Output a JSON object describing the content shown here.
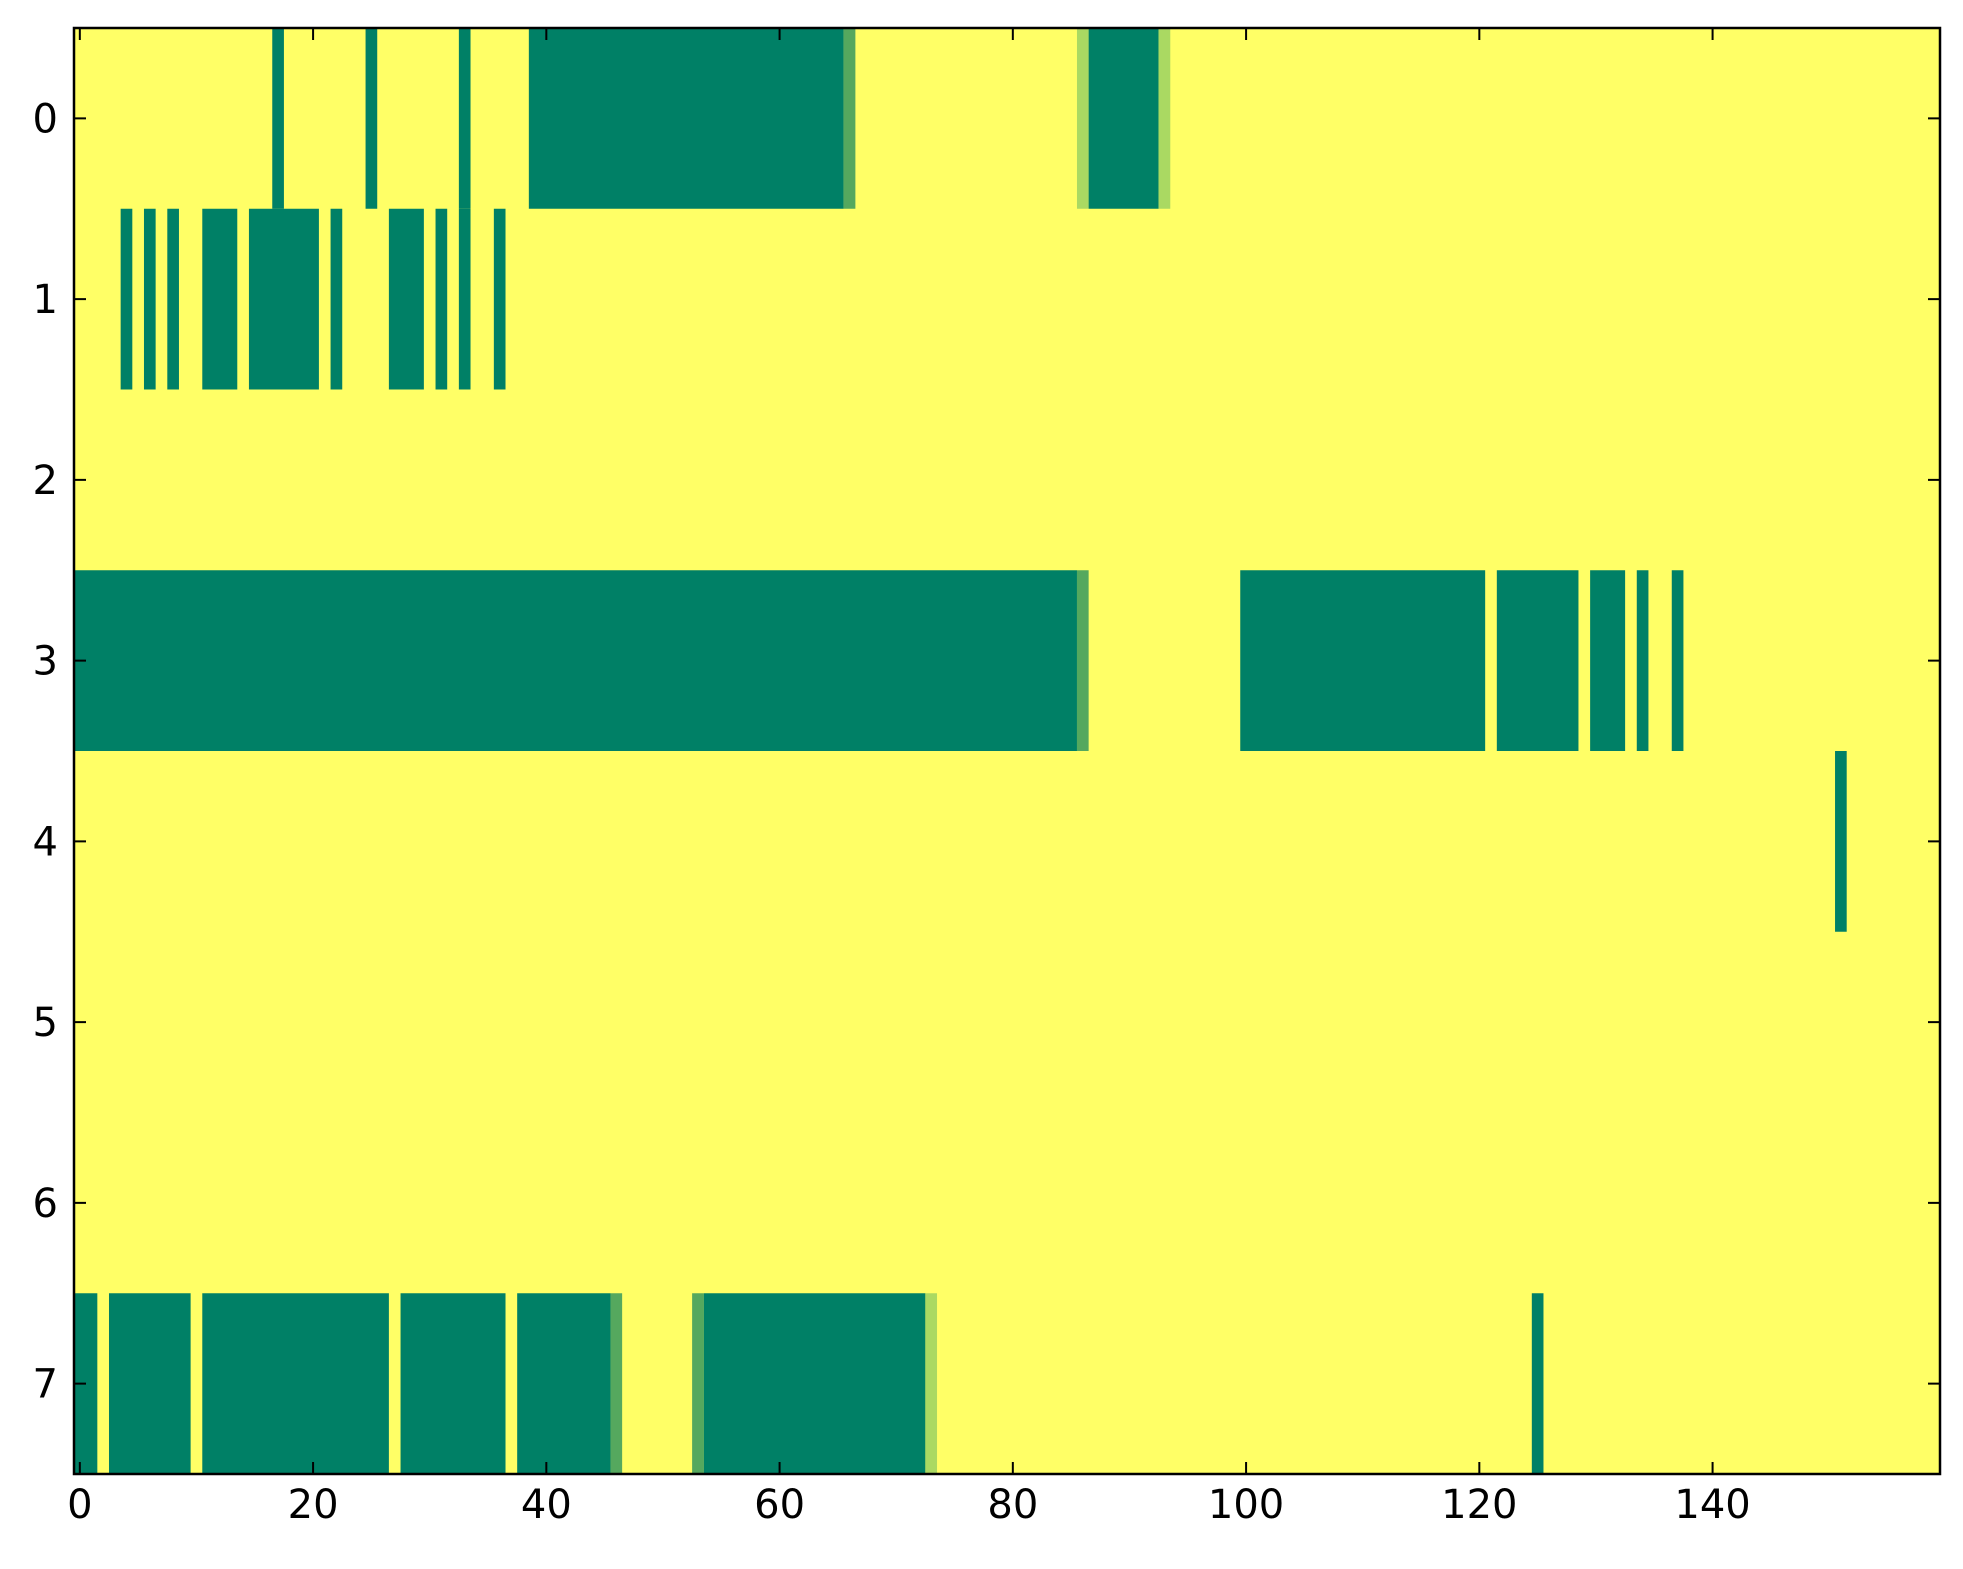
{
  "chart_data": {
    "type": "heatmap",
    "title": "",
    "xlabel": "",
    "ylabel": "",
    "xlim": [
      -0.5,
      159.5
    ],
    "ylim": [
      7.5,
      -0.5
    ],
    "x_ticks": [
      0,
      20,
      40,
      60,
      80,
      100,
      120,
      140
    ],
    "y_ticks": [
      0,
      1,
      2,
      3,
      4,
      5,
      6,
      7
    ],
    "grid": false,
    "legend": "none",
    "colors": {
      "background": "#ffff66",
      "high": "#008066",
      "mid": "#55a85e",
      "low": "#aad962"
    },
    "rows": [
      {
        "row": 0,
        "segments": [
          {
            "start": 17,
            "end": 17,
            "level": "high"
          },
          {
            "start": 25,
            "end": 25,
            "level": "high"
          },
          {
            "start": 33,
            "end": 33,
            "level": "high"
          },
          {
            "start": 39,
            "end": 65,
            "level": "high"
          },
          {
            "start": 66,
            "end": 66,
            "level": "mid"
          },
          {
            "start": 86,
            "end": 86,
            "level": "low"
          },
          {
            "start": 87,
            "end": 92,
            "level": "high"
          },
          {
            "start": 93,
            "end": 93,
            "level": "low"
          }
        ]
      },
      {
        "row": 1,
        "segments": [
          {
            "start": 4,
            "end": 4,
            "level": "high"
          },
          {
            "start": 6,
            "end": 6,
            "level": "high"
          },
          {
            "start": 8,
            "end": 8,
            "level": "high"
          },
          {
            "start": 11,
            "end": 13,
            "level": "high"
          },
          {
            "start": 15,
            "end": 20,
            "level": "high"
          },
          {
            "start": 22,
            "end": 22,
            "level": "high"
          },
          {
            "start": 27,
            "end": 29,
            "level": "high"
          },
          {
            "start": 31,
            "end": 31,
            "level": "high"
          },
          {
            "start": 33,
            "end": 33,
            "level": "high"
          },
          {
            "start": 36,
            "end": 36,
            "level": "high"
          }
        ]
      },
      {
        "row": 2,
        "segments": []
      },
      {
        "row": 3,
        "segments": [
          {
            "start": 0,
            "end": 85,
            "level": "high"
          },
          {
            "start": 86,
            "end": 86,
            "level": "mid"
          },
          {
            "start": 100,
            "end": 120,
            "level": "high"
          },
          {
            "start": 122,
            "end": 128,
            "level": "high"
          },
          {
            "start": 130,
            "end": 132,
            "level": "high"
          },
          {
            "start": 134,
            "end": 134,
            "level": "high"
          },
          {
            "start": 137,
            "end": 137,
            "level": "high"
          }
        ]
      },
      {
        "row": 4,
        "segments": [
          {
            "start": 151,
            "end": 151,
            "level": "high"
          }
        ]
      },
      {
        "row": 5,
        "segments": []
      },
      {
        "row": 6,
        "segments": []
      },
      {
        "row": 7,
        "segments": [
          {
            "start": 0,
            "end": 1,
            "level": "high"
          },
          {
            "start": 3,
            "end": 9,
            "level": "high"
          },
          {
            "start": 11,
            "end": 26,
            "level": "high"
          },
          {
            "start": 28,
            "end": 36,
            "level": "high"
          },
          {
            "start": 38,
            "end": 45,
            "level": "high"
          },
          {
            "start": 46,
            "end": 46,
            "level": "mid"
          },
          {
            "start": 53,
            "end": 53,
            "level": "mid"
          },
          {
            "start": 54,
            "end": 72,
            "level": "high"
          },
          {
            "start": 73,
            "end": 73,
            "level": "low"
          },
          {
            "start": 125,
            "end": 125,
            "level": "high"
          }
        ]
      }
    ]
  }
}
